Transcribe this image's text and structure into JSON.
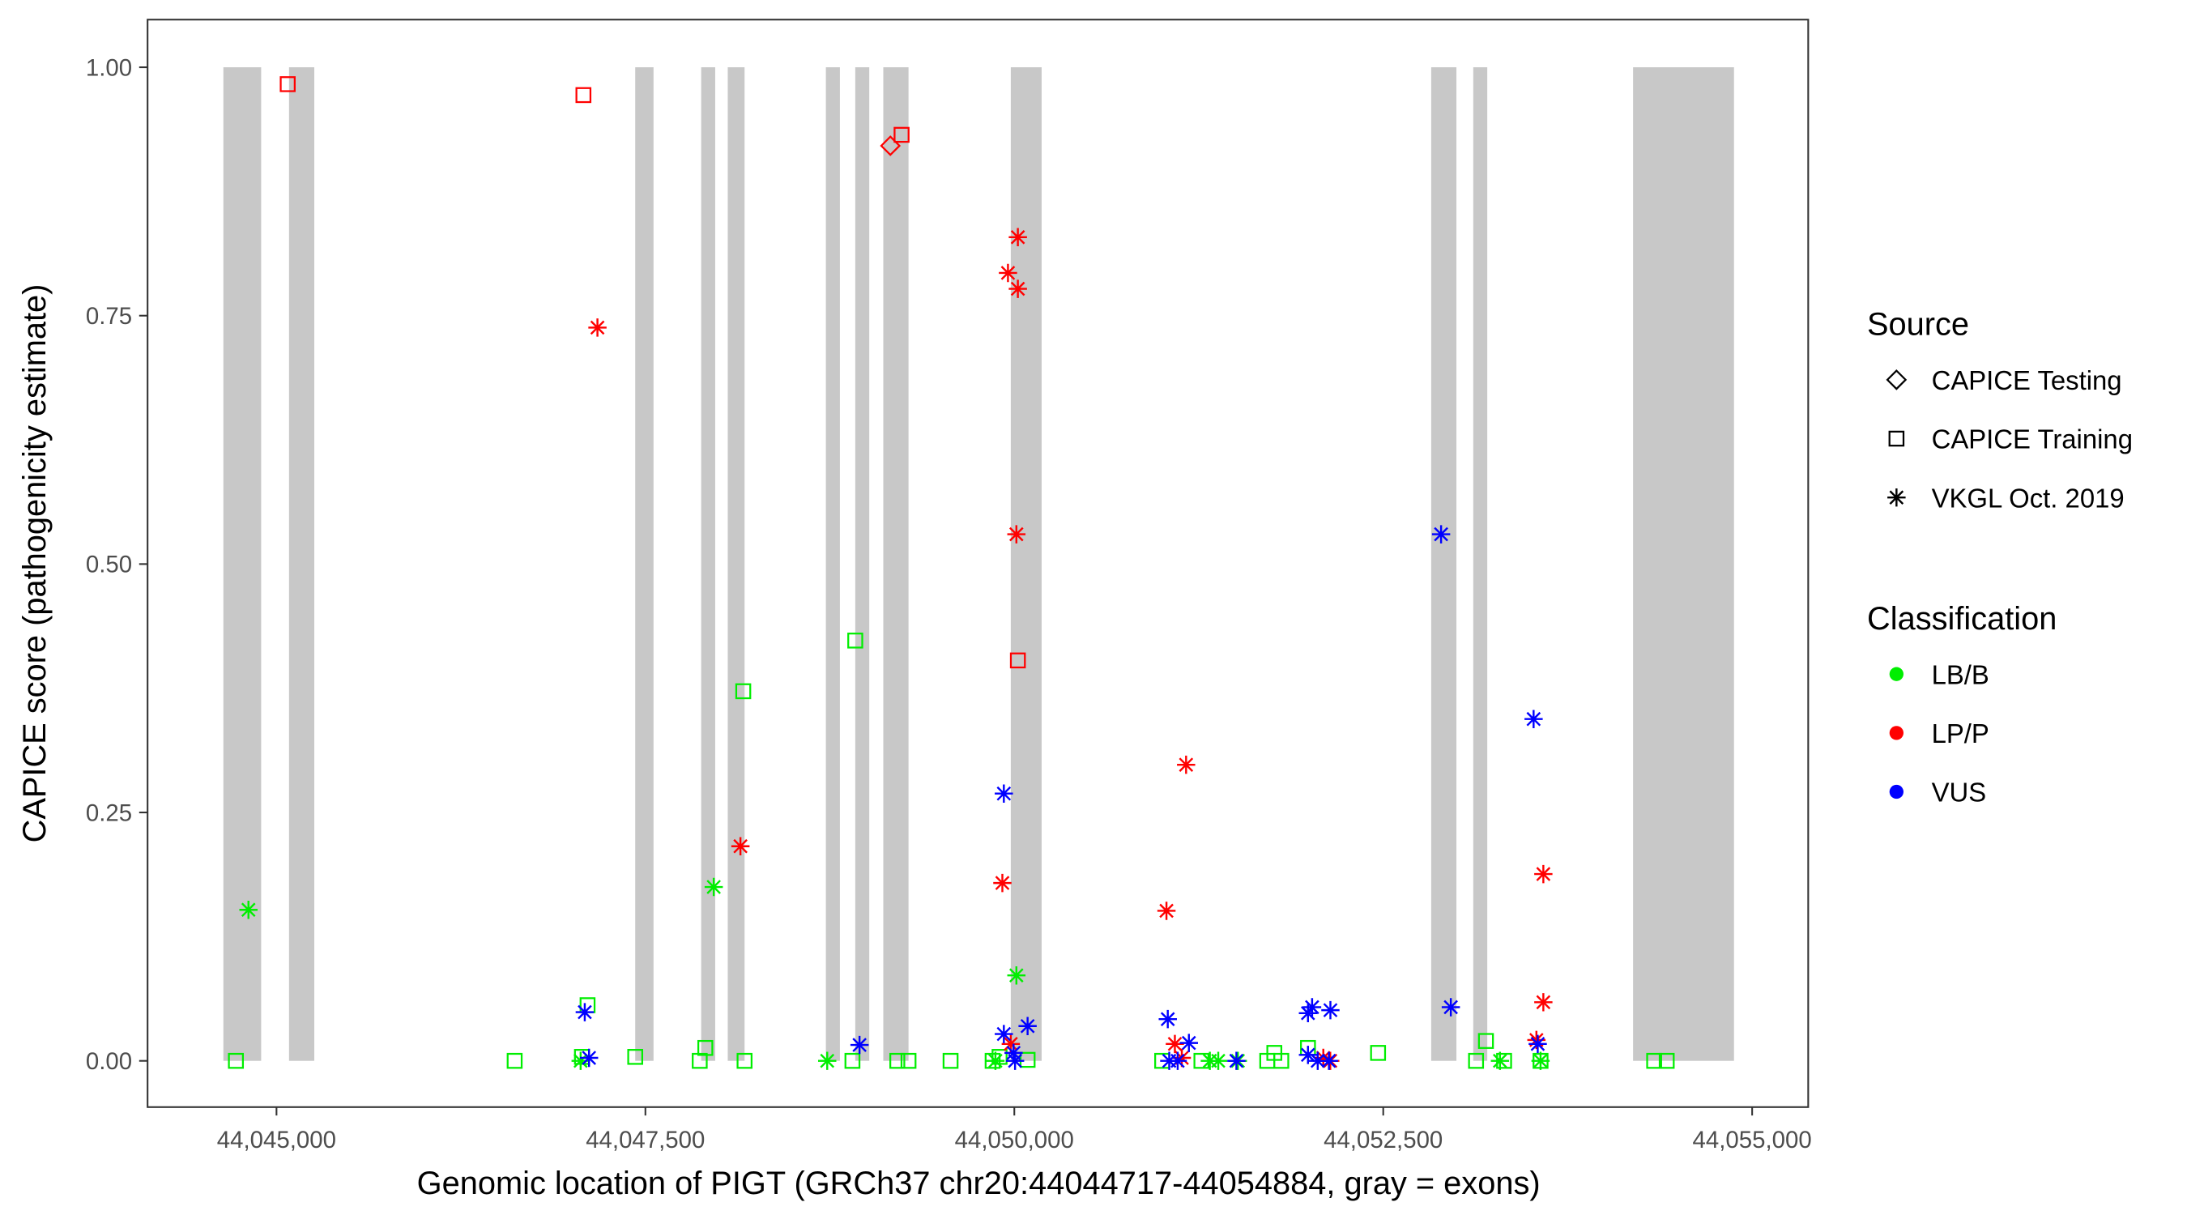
{
  "chart_data": {
    "type": "scatter",
    "xlabel": "Genomic location of PIGT (GRCh37 chr20:44044717-44054884, gray = exons)",
    "ylabel": "CAPICE score (pathogenicity estimate)",
    "xlim": [
      44044500,
      44055300
    ],
    "ylim": [
      -0.045,
      1.045
    ],
    "x_ticks": [
      44045000,
      44047500,
      44050000,
      44052500,
      44055000
    ],
    "x_tick_labels": [
      "44,045,000",
      "44,047,500",
      "44,050,000",
      "44,052,500",
      "44,055,000"
    ],
    "y_ticks": [
      0,
      0.25,
      0.5,
      0.75,
      1
    ],
    "y_tick_labels": [
      "0.00",
      "0.25",
      "0.50",
      "0.75",
      "1.00"
    ],
    "grid": false,
    "exons": [
      [
        44044640,
        44044896
      ],
      [
        44045085,
        44045256
      ],
      [
        44047431,
        44047555
      ],
      [
        44047878,
        44047973
      ],
      [
        44048058,
        44048172
      ],
      [
        44048723,
        44048818
      ],
      [
        44048922,
        44049017
      ],
      [
        44049112,
        44049283
      ],
      [
        44049976,
        44050185
      ],
      [
        44052825,
        44052996
      ],
      [
        44053110,
        44053205
      ],
      [
        44054193,
        44054877
      ]
    ],
    "legend": {
      "placement": "right",
      "source_title": "Source",
      "source_items": [
        {
          "label": "CAPICE Testing",
          "shape": "diamond"
        },
        {
          "label": "CAPICE Training",
          "shape": "square"
        },
        {
          "label": "VKGL Oct. 2019",
          "shape": "star"
        }
      ],
      "class_title": "Classification",
      "class_items": [
        {
          "label": "LB/B",
          "color": "#00ee00"
        },
        {
          "label": "LP/P",
          "color": "#ff0000"
        },
        {
          "label": "VUS",
          "color": "#0000ff"
        }
      ]
    },
    "series": [
      {
        "source": "CAPICE Testing",
        "class": "LP/P",
        "points": [
          [
            44049160,
            0.921
          ]
        ]
      },
      {
        "source": "CAPICE Training",
        "class": "LP/P",
        "points": [
          [
            44045076,
            0.983
          ],
          [
            44047080,
            0.972
          ],
          [
            44049236,
            0.932
          ],
          [
            44050024,
            0.403
          ]
        ]
      },
      {
        "source": "CAPICE Training",
        "class": "LB/B",
        "points": [
          [
            44044725,
            0
          ],
          [
            44046614,
            0
          ],
          [
            44047070,
            0.004
          ],
          [
            44047108,
            0.056
          ],
          [
            44047431,
            0.004
          ],
          [
            44047868,
            0
          ],
          [
            44047906,
            0.013
          ],
          [
            44048163,
            0.372
          ],
          [
            44048172,
            0
          ],
          [
            44048903,
            0
          ],
          [
            44048922,
            0.423
          ],
          [
            44049207,
            0
          ],
          [
            44049283,
            0
          ],
          [
            44049568,
            0
          ],
          [
            44049853,
            0
          ],
          [
            44049900,
            0.004
          ],
          [
            44050090,
            0.001
          ],
          [
            44051002,
            0
          ],
          [
            44051268,
            0
          ],
          [
            44051714,
            0
          ],
          [
            44051762,
            0.008
          ],
          [
            44051809,
            0
          ],
          [
            44051990,
            0.013
          ],
          [
            44052465,
            0.008
          ],
          [
            44053129,
            0
          ],
          [
            44053196,
            0.02
          ],
          [
            44053319,
            0
          ],
          [
            44053566,
            0
          ],
          [
            44054336,
            0
          ],
          [
            44054421,
            0
          ]
        ]
      },
      {
        "source": "VKGL Oct. 2019",
        "class": "LB/B",
        "points": [
          [
            44044810,
            0.152
          ],
          [
            44047963,
            0.175
          ],
          [
            44050014,
            0.086
          ],
          [
            44047061,
            0
          ],
          [
            44048732,
            0
          ],
          [
            44049872,
            0
          ],
          [
            44051325,
            0
          ],
          [
            44051382,
            0
          ],
          [
            44051515,
            0
          ],
          [
            44053291,
            0
          ],
          [
            44053566,
            0
          ]
        ]
      },
      {
        "source": "VKGL Oct. 2019",
        "class": "LP/P",
        "points": [
          [
            44047175,
            0.738
          ],
          [
            44048144,
            0.216
          ],
          [
            44049957,
            0.793
          ],
          [
            44050024,
            0.829
          ],
          [
            44050024,
            0.777
          ],
          [
            44050014,
            0.53
          ],
          [
            44049919,
            0.179
          ],
          [
            44049976,
            0.017
          ],
          [
            44051164,
            0.298
          ],
          [
            44051031,
            0.151
          ],
          [
            44051088,
            0.017
          ],
          [
            44051135,
            0.003
          ],
          [
            44052094,
            0.003
          ],
          [
            44052141,
            0
          ],
          [
            44053538,
            0.021
          ],
          [
            44053585,
            0.188
          ],
          [
            44053585,
            0.059
          ]
        ]
      },
      {
        "source": "VKGL Oct. 2019",
        "class": "VUS",
        "points": [
          [
            44047089,
            0.049
          ],
          [
            44047118,
            0.003
          ],
          [
            44048951,
            0.016
          ],
          [
            44049929,
            0.269
          ],
          [
            44049929,
            0.027
          ],
          [
            44049995,
            0.008
          ],
          [
            44050090,
            0.035
          ],
          [
            44050005,
            0
          ],
          [
            44051040,
            0.042
          ],
          [
            44051183,
            0.018
          ],
          [
            44051050,
            0
          ],
          [
            44051107,
            0
          ],
          [
            44051505,
            0
          ],
          [
            44051990,
            0.006
          ],
          [
            44052018,
            0.054
          ],
          [
            44051990,
            0.048
          ],
          [
            44052142,
            0.051
          ],
          [
            44052056,
            0
          ],
          [
            44052132,
            0
          ],
          [
            44052892,
            0.53
          ],
          [
            44052958,
            0.054
          ],
          [
            44053519,
            0.344
          ],
          [
            44053547,
            0.017
          ]
        ]
      }
    ]
  }
}
